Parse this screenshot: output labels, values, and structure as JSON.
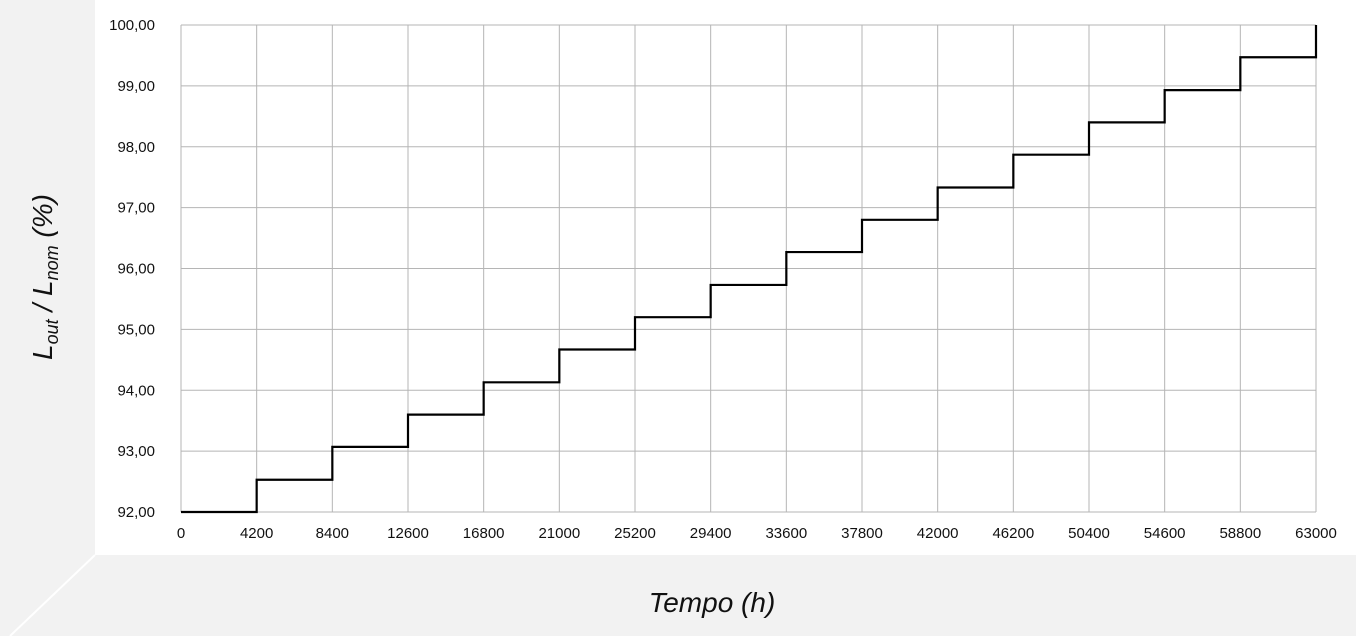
{
  "chart_data": {
    "type": "line",
    "step": "post",
    "xlabel": "Tempo (h)",
    "ylabel": {
      "main": "L",
      "sub1": "out",
      "sep": " / L",
      "sub2": "nom",
      "suffix": " (%)"
    },
    "x_ticks": [
      "0",
      "4200",
      "8400",
      "12600",
      "16800",
      "21000",
      "25200",
      "29400",
      "33600",
      "37800",
      "42000",
      "46200",
      "50400",
      "54600",
      "58800",
      "63000"
    ],
    "y_ticks": [
      "92,00",
      "93,00",
      "94,00",
      "95,00",
      "96,00",
      "97,00",
      "98,00",
      "99,00",
      "100,00"
    ],
    "xlim": [
      0,
      63000
    ],
    "ylim": [
      92,
      100
    ],
    "grid": true,
    "colors": {
      "line": "#000000",
      "grid": "#b5b5b5",
      "plot_bg": "#ffffff",
      "frame_bg": "#f2f2f2"
    },
    "series": [
      {
        "x": [
          0,
          4200,
          8400,
          12600,
          16800,
          21000,
          25200,
          29400,
          33600,
          37800,
          42000,
          46200,
          50400,
          54600,
          58800,
          63000
        ],
        "y": [
          92.0,
          92.53,
          93.07,
          93.6,
          94.13,
          94.67,
          95.2,
          95.73,
          96.27,
          96.8,
          97.33,
          97.87,
          98.4,
          98.93,
          99.47,
          100.0
        ]
      }
    ]
  }
}
